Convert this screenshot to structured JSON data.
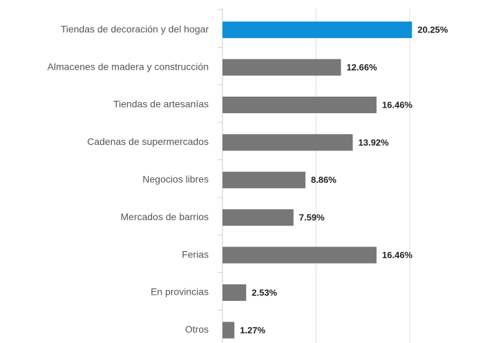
{
  "chart_data": {
    "type": "barh",
    "categories": [
      "Tiendas de decoración y del hogar",
      "Almacenes de madera y construcción",
      "Tiendas de artesanías",
      "Cadenas de supermercados",
      "Negocios libres",
      "Mercados de barrios",
      "Ferias",
      "En provincias",
      "Otros"
    ],
    "values": [
      20.25,
      12.66,
      16.46,
      13.92,
      8.86,
      7.59,
      16.46,
      2.53,
      1.27
    ],
    "value_labels": [
      "20.25%",
      "12.66%",
      "16.46%",
      "13.92%",
      "8.86%",
      "7.59%",
      "16.46%",
      "2.53%",
      "1.27%"
    ],
    "colors": [
      "#0f8ed9",
      "#777777",
      "#777777",
      "#777777",
      "#777777",
      "#777777",
      "#777777",
      "#777777",
      "#777777"
    ],
    "xlim": [
      0,
      28.8
    ],
    "xticks": [
      0,
      10,
      20
    ],
    "grid": true
  }
}
